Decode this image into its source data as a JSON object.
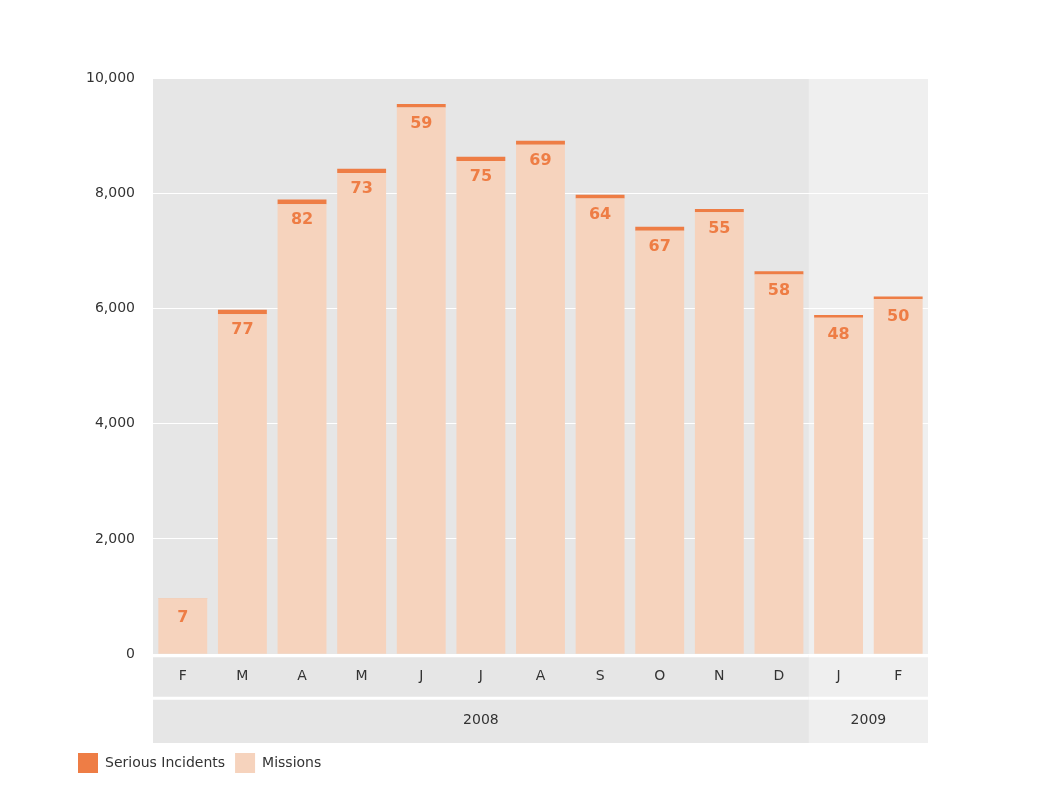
{
  "chart_data": {
    "type": "bar",
    "stacked": true,
    "categories": [
      "F",
      "M",
      "A",
      "M",
      "J",
      "J",
      "A",
      "S",
      "O",
      "N",
      "D",
      "J",
      "F"
    ],
    "series": [
      {
        "name": "Missions",
        "color": "#f6d3bd",
        "values": [
          970,
          5900,
          7810,
          8350,
          9490,
          8560,
          8840,
          7910,
          7350,
          7670,
          6590,
          5840,
          6160
        ]
      },
      {
        "name": "Serious Incidents",
        "color": "#ee7d45",
        "values": [
          7,
          77,
          82,
          73,
          59,
          75,
          69,
          64,
          67,
          55,
          58,
          48,
          50
        ],
        "value_labels": [
          "7",
          "77",
          "82",
          "73",
          "59",
          "75",
          "69",
          "64",
          "67",
          "55",
          "58",
          "48",
          "50"
        ]
      }
    ],
    "ylim": [
      0,
      10000
    ],
    "yticks": [
      0,
      {
        "value": 2000,
        "label": "2,000"
      },
      {
        "value": 4000,
        "label": "4,000"
      },
      {
        "value": 6000,
        "label": "6,000"
      },
      {
        "value": 8000,
        "label": "8,000"
      },
      {
        "value": 10000,
        "label": "10,000"
      }
    ],
    "grid": "y",
    "legend": "bottom left",
    "bands": [
      {
        "axis": "x",
        "from": "F",
        "to": "D",
        "label": "2008",
        "color": "#e6e6e6"
      }
    ],
    "annotations": [
      "2009"
    ]
  }
}
